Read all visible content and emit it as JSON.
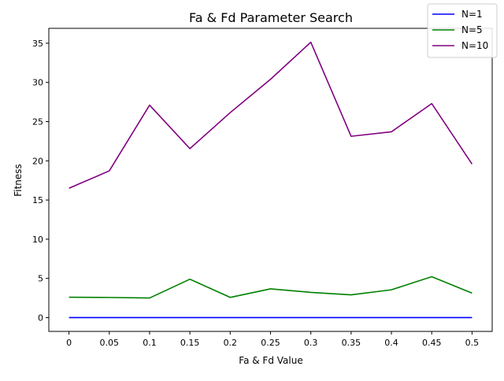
{
  "chart_data": {
    "type": "line",
    "title": "Fa & Fd Parameter Search",
    "xlabel": "Fa & Fd Value",
    "ylabel": "Fitness",
    "x": [
      "0",
      "0.05",
      "0.1",
      "0.15",
      "0.2",
      "0.25",
      "0.3",
      "0.35",
      "0.4",
      "0.45",
      "0.5"
    ],
    "x_values": [
      0,
      0.05,
      0.1,
      0.15,
      0.2,
      0.25,
      0.3,
      0.35,
      0.4,
      0.45,
      0.5
    ],
    "xlim": [
      -0.025,
      0.525
    ],
    "ylim": [
      -1.76,
      36.9
    ],
    "yticks": [
      0,
      5,
      10,
      15,
      20,
      25,
      30,
      35
    ],
    "grid": false,
    "legend_position": "top-right",
    "series": [
      {
        "name": "N=1",
        "color": "#0000ff",
        "values": [
          0,
          0,
          0,
          0,
          0,
          0,
          0,
          0,
          0,
          0,
          0
        ]
      },
      {
        "name": "N=5",
        "color": "#008000",
        "values": [
          2.6,
          2.57,
          2.5,
          4.9,
          2.58,
          3.67,
          3.22,
          2.9,
          3.55,
          5.22,
          3.12
        ]
      },
      {
        "name": "N=10",
        "color": "#800080",
        "values": [
          16.5,
          18.72,
          27.1,
          21.56,
          26.15,
          30.4,
          35.13,
          23.13,
          23.7,
          27.3,
          19.58
        ]
      }
    ]
  }
}
